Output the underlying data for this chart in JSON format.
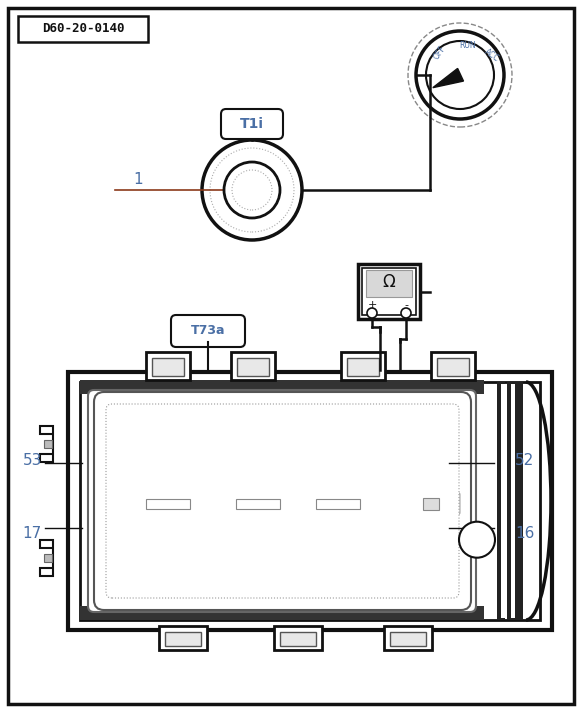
{
  "bg": "#ffffff",
  "dark": "#111111",
  "blue": "#4a6fa5",
  "pin_fill": "#8B3A1A",
  "pin_dark_fill": "#555555",
  "fig_w": 5.82,
  "fig_h": 7.12,
  "dpi": 100,
  "title": "D60-20-0140",
  "sensor_tag": "T1i",
  "connector_tag": "T73a",
  "border_lw": 2.5,
  "conn_outer_lw": 3.0
}
